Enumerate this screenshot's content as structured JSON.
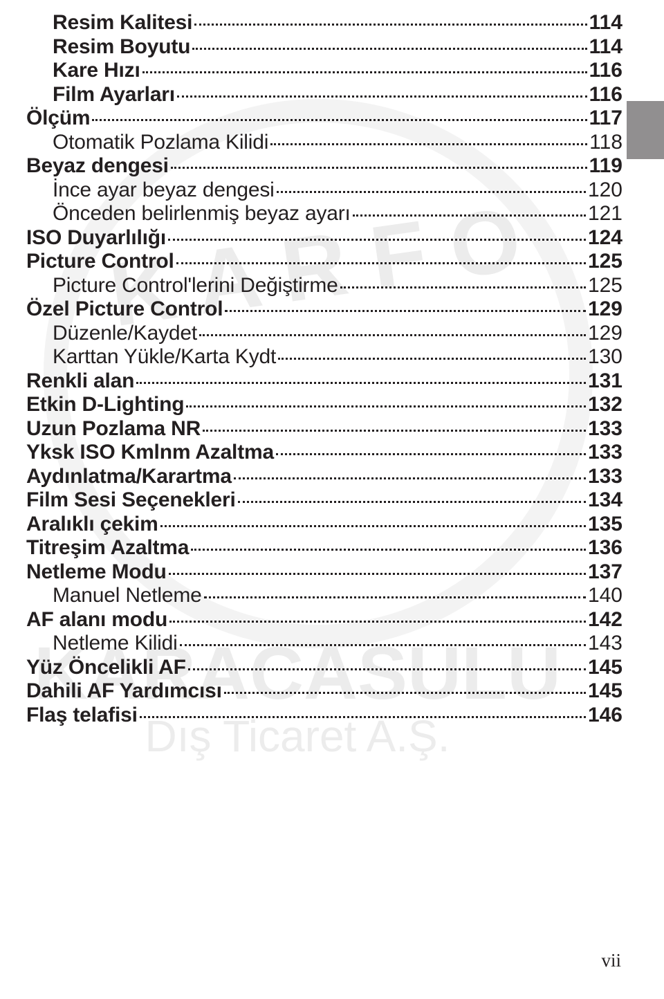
{
  "page_number": "vii",
  "side_tab_color": "#918f90",
  "watermark": {
    "circle_color": "#f3f3f3",
    "text_color": "#ececec",
    "line1": "KARACASULU",
    "line2": "Dış Ticaret A.Ş."
  },
  "toc": [
    {
      "title": "Resim Kalitesi",
      "page": "114",
      "indent": 1,
      "bold": true
    },
    {
      "title": "Resim Boyutu",
      "page": "114",
      "indent": 1,
      "bold": true
    },
    {
      "title": "Kare Hızı",
      "page": "116",
      "indent": 1,
      "bold": true
    },
    {
      "title": "Film Ayarları",
      "page": "116",
      "indent": 1,
      "bold": true
    },
    {
      "title": "Ölçüm",
      "page": "117",
      "indent": 0,
      "bold": true
    },
    {
      "title": "Otomatik Pozlama Kilidi",
      "page": "118",
      "indent": 1,
      "bold": false
    },
    {
      "title": "Beyaz dengesi",
      "page": "119",
      "indent": 0,
      "bold": true
    },
    {
      "title": "İnce ayar beyaz dengesi",
      "page": "120",
      "indent": 1,
      "bold": false
    },
    {
      "title": "Önceden belirlenmiş beyaz ayarı",
      "page": "121",
      "indent": 1,
      "bold": false
    },
    {
      "title": "ISO Duyarlılığı",
      "page": "124",
      "indent": 0,
      "bold": true
    },
    {
      "title": "Picture Control",
      "page": "125",
      "indent": 0,
      "bold": true
    },
    {
      "title": "Picture Control'lerini Değiştirme",
      "page": "125",
      "indent": 1,
      "bold": false
    },
    {
      "title": "Özel Picture Control",
      "page": "129",
      "indent": 0,
      "bold": true
    },
    {
      "title": "Düzenle/Kaydet",
      "page": "129",
      "indent": 1,
      "bold": false
    },
    {
      "title": "Karttan Yükle/Karta Kydt",
      "page": "130",
      "indent": 1,
      "bold": false
    },
    {
      "title": "Renkli alan",
      "page": "131",
      "indent": 0,
      "bold": true
    },
    {
      "title": "Etkin D-Lighting",
      "page": "132",
      "indent": 0,
      "bold": true
    },
    {
      "title": "Uzun Pozlama NR",
      "page": "133",
      "indent": 0,
      "bold": true
    },
    {
      "title": "Yksk ISO Kmlnm Azaltma",
      "page": "133",
      "indent": 0,
      "bold": true
    },
    {
      "title": "Aydınlatma/Karartma",
      "page": "133",
      "indent": 0,
      "bold": true
    },
    {
      "title": "Film Sesi Seçenekleri",
      "page": "134",
      "indent": 0,
      "bold": true
    },
    {
      "title": "Aralıklı çekim",
      "page": "135",
      "indent": 0,
      "bold": true
    },
    {
      "title": "Titreşim Azaltma",
      "page": "136",
      "indent": 0,
      "bold": true
    },
    {
      "title": "Netleme Modu",
      "page": "137",
      "indent": 0,
      "bold": true
    },
    {
      "title": "Manuel Netleme",
      "page": "140",
      "indent": 1,
      "bold": false
    },
    {
      "title": "AF alanı modu",
      "page": "142",
      "indent": 0,
      "bold": true
    },
    {
      "title": "Netleme Kilidi",
      "page": "143",
      "indent": 1,
      "bold": false
    },
    {
      "title": "Yüz Öncelikli AF",
      "page": "145",
      "indent": 0,
      "bold": true
    },
    {
      "title": "Dahili AF Yardımcısı",
      "page": "145",
      "indent": 0,
      "bold": true
    },
    {
      "title": "Flaş telafisi",
      "page": "146",
      "indent": 0,
      "bold": true
    }
  ]
}
